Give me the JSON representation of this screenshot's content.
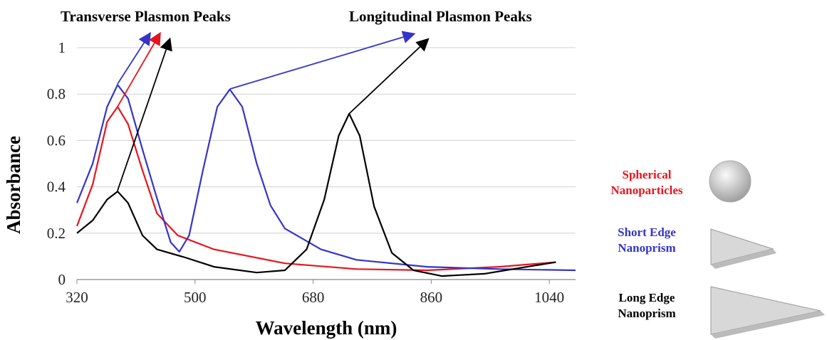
{
  "chart_data": {
    "type": "line",
    "annotations": [
      "Transverse Plasmon Peaks",
      "Longitudinal Plasmon Peaks"
    ],
    "x_label": "Wavelength (nm)",
    "y_label": "Absorbance",
    "xlim": [
      320,
      1080
    ],
    "xticks": [
      320,
      500,
      680,
      860,
      1040
    ],
    "ylim": [
      0,
      1
    ],
    "yticks": [
      0,
      0.2,
      0.4,
      0.6,
      0.8,
      1
    ],
    "grid": true,
    "series": [
      {
        "name": "Spherical Nanoparticles",
        "color": "#e8141c",
        "x": [
          320,
          344,
          366,
          382,
          398,
          420,
          442,
          474,
          529,
          637,
          746,
          854,
          963,
          1050
        ],
        "values": [
          0.23,
          0.41,
          0.68,
          0.745,
          0.67,
          0.47,
          0.285,
          0.19,
          0.13,
          0.07,
          0.045,
          0.04,
          0.055,
          0.075
        ]
      },
      {
        "name": "Short Edge Nanoprism",
        "color": "#3434c8",
        "x": [
          320,
          344,
          366,
          382,
          398,
          420,
          442,
          463,
          476,
          491,
          512,
          534,
          553,
          572,
          594,
          615,
          637,
          692,
          746,
          854,
          963,
          1080
        ],
        "values": [
          0.33,
          0.5,
          0.745,
          0.84,
          0.78,
          0.56,
          0.35,
          0.16,
          0.12,
          0.19,
          0.47,
          0.745,
          0.82,
          0.745,
          0.5,
          0.32,
          0.22,
          0.13,
          0.085,
          0.055,
          0.045,
          0.04
        ]
      },
      {
        "name": "Long Edge Nanoprism",
        "color": "#000000",
        "x": [
          320,
          344,
          366,
          382,
          398,
          420,
          442,
          485,
          529,
          594,
          637,
          670,
          697,
          719,
          735,
          751,
          773,
          800,
          833,
          876,
          941,
          1006,
          1050
        ],
        "values": [
          0.2,
          0.255,
          0.345,
          0.38,
          0.33,
          0.19,
          0.13,
          0.095,
          0.055,
          0.03,
          0.04,
          0.13,
          0.345,
          0.62,
          0.715,
          0.62,
          0.315,
          0.115,
          0.04,
          0.015,
          0.025,
          0.055,
          0.075
        ]
      }
    ]
  }
}
